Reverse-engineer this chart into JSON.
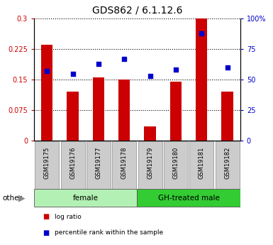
{
  "title": "GDS862 / 6.1.12.6",
  "samples": [
    "GSM19175",
    "GSM19176",
    "GSM19177",
    "GSM19178",
    "GSM19179",
    "GSM19180",
    "GSM19181",
    "GSM19182"
  ],
  "log_ratio": [
    0.235,
    0.12,
    0.155,
    0.15,
    0.035,
    0.145,
    0.3,
    0.12
  ],
  "percentile_rank": [
    57,
    55,
    63,
    67,
    53,
    58,
    88,
    60
  ],
  "bar_color": "#cc0000",
  "dot_color": "#0000cc",
  "ylim_left": [
    0,
    0.3
  ],
  "ylim_right": [
    0,
    100
  ],
  "yticks_left": [
    0,
    0.075,
    0.15,
    0.225,
    0.3
  ],
  "yticks_right": [
    0,
    25,
    50,
    75,
    100
  ],
  "ytick_labels_left": [
    "0",
    "0.075",
    "0.15",
    "0.225",
    "0.3"
  ],
  "ytick_labels_right": [
    "0",
    "25",
    "50",
    "75",
    "100%"
  ],
  "groups": [
    {
      "label": "female",
      "start": 0,
      "end": 4,
      "color": "#b3f0b3"
    },
    {
      "label": "GH-treated male",
      "start": 4,
      "end": 8,
      "color": "#33cc33"
    }
  ],
  "other_label": "other",
  "legend_items": [
    {
      "label": "log ratio",
      "color": "#cc0000"
    },
    {
      "label": "percentile rank within the sample",
      "color": "#0000cc"
    }
  ],
  "background_color": "#ffffff",
  "bar_color_dark": "#cc0000",
  "grid_color": "#000000",
  "bar_width": 0.45,
  "title_fontsize": 10,
  "tick_fontsize": 7,
  "label_fontsize": 7.5
}
